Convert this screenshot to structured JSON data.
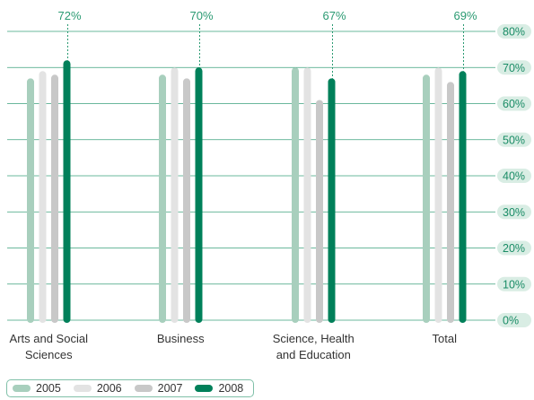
{
  "chart_data": {
    "type": "bar",
    "categories": [
      "Arts and Social Sciences",
      "Business",
      "Science, Health and Education",
      "Total"
    ],
    "category_label_lines": [
      [
        "Arts and Social",
        "Sciences"
      ],
      [
        "Business"
      ],
      [
        "Science, Health",
        "and Education"
      ],
      [
        "Total"
      ]
    ],
    "series": [
      {
        "name": "2005",
        "values": [
          67,
          68,
          70,
          68
        ],
        "color": "#a8cfbd"
      },
      {
        "name": "2006",
        "values": [
          69,
          70,
          70,
          70
        ],
        "color": "#e3e3e3"
      },
      {
        "name": "2007",
        "values": [
          68,
          67,
          61,
          66
        ],
        "color": "#c8c8c8"
      },
      {
        "name": "2008",
        "values": [
          72,
          70,
          67,
          69
        ],
        "color": "#00805a"
      }
    ],
    "data_labels": [
      "72%",
      "70%",
      "67%",
      "69%"
    ],
    "y_ticks": [
      "0%",
      "10%",
      "20%",
      "30%",
      "40%",
      "50%",
      "60%",
      "70%",
      "80%"
    ],
    "ylim": [
      0,
      80
    ],
    "y_axis_side": "right",
    "grid": true,
    "legend_position": "bottom-left",
    "colors": {
      "grid": "#3aa07c",
      "tick_bg": "#d9ede4",
      "label_leader": "#2a9a72"
    }
  }
}
